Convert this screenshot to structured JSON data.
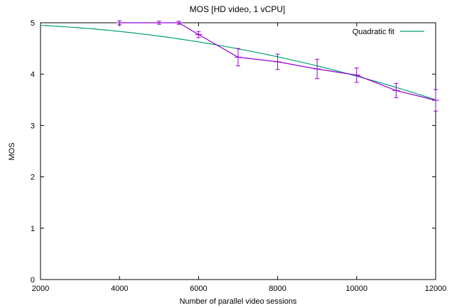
{
  "chart_data": {
    "type": "line",
    "title": "MOS [HD video, 1 vCPU]",
    "xlabel": "Number of parallel video sessions",
    "ylabel": "MOS",
    "xlim": [
      2000,
      12000
    ],
    "ylim": [
      0,
      5
    ],
    "x_ticks": [
      2000,
      4000,
      6000,
      8000,
      10000,
      12000
    ],
    "y_ticks": [
      0,
      1,
      2,
      3,
      4,
      5
    ],
    "grid": false,
    "legend_position": "top-right",
    "series": [
      {
        "name": "",
        "style": "line+errorbars",
        "color": "#9400d3",
        "x": [
          4000,
          5000,
          5500,
          6000,
          7000,
          8000,
          9000,
          10000,
          11000,
          12000
        ],
        "y": [
          5.0,
          5.0,
          5.0,
          4.77,
          4.33,
          4.24,
          4.1,
          3.98,
          3.68,
          3.49
        ],
        "err": [
          0.04,
          0.03,
          0.03,
          0.06,
          0.17,
          0.15,
          0.19,
          0.14,
          0.14,
          0.21
        ]
      },
      {
        "name": "Quadratic fit",
        "style": "line",
        "color": "#009e73",
        "x": [
          2000,
          3000,
          4000,
          5000,
          6000,
          7000,
          8000,
          9000,
          10000,
          11000,
          12000
        ],
        "y": [
          4.95,
          4.9,
          4.83,
          4.74,
          4.63,
          4.49,
          4.34,
          4.16,
          3.96,
          3.74,
          3.5
        ]
      }
    ]
  }
}
